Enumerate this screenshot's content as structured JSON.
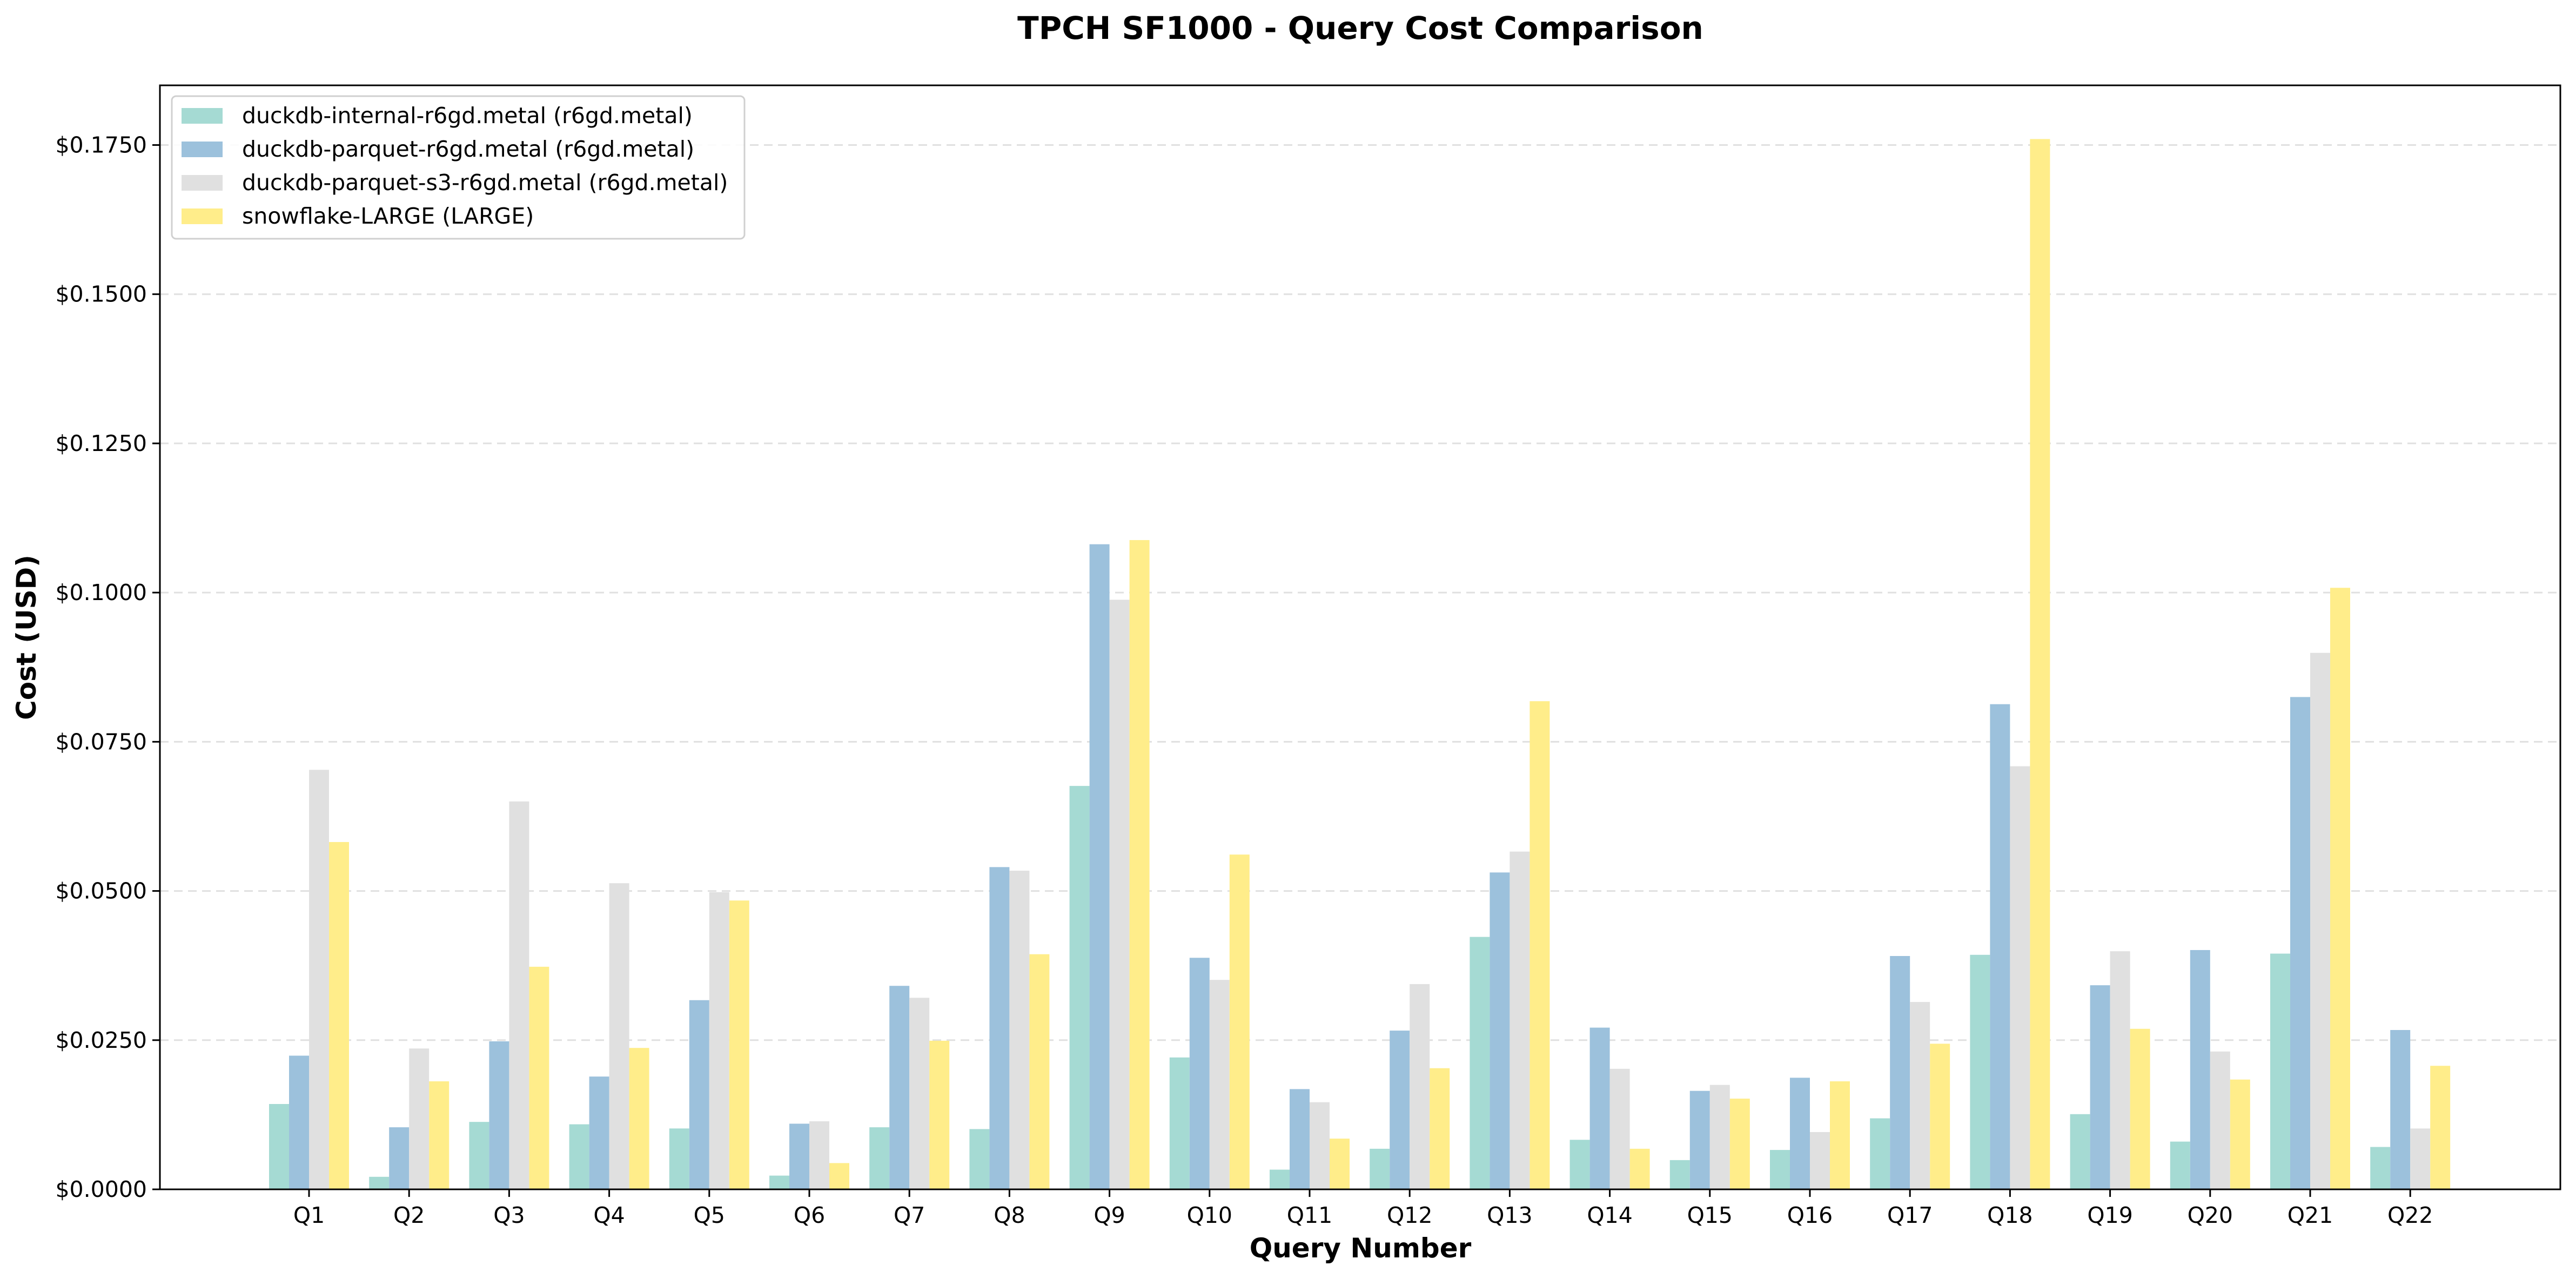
{
  "chart_data": {
    "type": "bar",
    "title": "TPCH SF1000 - Query Cost Comparison",
    "xlabel": "Query Number",
    "ylabel": "Cost (USD)",
    "ylim": [
      0,
      0.185
    ],
    "yticks": [
      0,
      0.025,
      0.05,
      0.075,
      0.1,
      0.125,
      0.15,
      0.175
    ],
    "ytick_labels": [
      "$0.0000",
      "$0.0250",
      "$0.0500",
      "$0.0750",
      "$0.1000",
      "$0.1250",
      "$0.1500",
      "$0.1750"
    ],
    "grid": "y",
    "legend_position": "top-left",
    "categories": [
      "Q1",
      "Q2",
      "Q3",
      "Q4",
      "Q5",
      "Q6",
      "Q7",
      "Q8",
      "Q9",
      "Q10",
      "Q11",
      "Q12",
      "Q13",
      "Q14",
      "Q15",
      "Q16",
      "Q17",
      "Q18",
      "Q19",
      "Q20",
      "Q21",
      "Q22"
    ],
    "series": [
      {
        "name": "duckdb-internal-r6gd.metal (r6gd.metal)",
        "color": "#a5dad3",
        "values": [
          0.0143,
          0.0021,
          0.0113,
          0.0109,
          0.0102,
          0.0023,
          0.0104,
          0.0101,
          0.0676,
          0.0221,
          0.0033,
          0.0068,
          0.0423,
          0.0083,
          0.0049,
          0.0066,
          0.0119,
          0.0393,
          0.0126,
          0.008,
          0.0395,
          0.0071
        ]
      },
      {
        "name": "duckdb-parquet-r6gd.metal (r6gd.metal)",
        "color": "#9cc1dc",
        "values": [
          0.0224,
          0.0104,
          0.0248,
          0.0189,
          0.0317,
          0.011,
          0.0341,
          0.054,
          0.1081,
          0.0388,
          0.0168,
          0.0266,
          0.0531,
          0.0271,
          0.0165,
          0.0187,
          0.0391,
          0.0813,
          0.0342,
          0.0401,
          0.0825,
          0.0267
        ]
      },
      {
        "name": "duckdb-parquet-s3-r6gd.metal (r6gd.metal)",
        "color": "#e0e0e0",
        "values": [
          0.0703,
          0.0236,
          0.065,
          0.0513,
          0.0498,
          0.0114,
          0.0321,
          0.0534,
          0.0988,
          0.0351,
          0.0146,
          0.0344,
          0.0566,
          0.0202,
          0.0175,
          0.0096,
          0.0314,
          0.0709,
          0.0399,
          0.0231,
          0.0899,
          0.0102
        ]
      },
      {
        "name": "snowflake-LARGE (LARGE)",
        "color": "#ffed8a",
        "values": [
          0.0582,
          0.0181,
          0.0373,
          0.0237,
          0.0484,
          0.0044,
          0.0249,
          0.0394,
          0.1088,
          0.0561,
          0.0085,
          0.0203,
          0.0818,
          0.0068,
          0.0152,
          0.0181,
          0.0244,
          0.176,
          0.0269,
          0.0184,
          0.1008,
          0.0207
        ]
      }
    ]
  }
}
